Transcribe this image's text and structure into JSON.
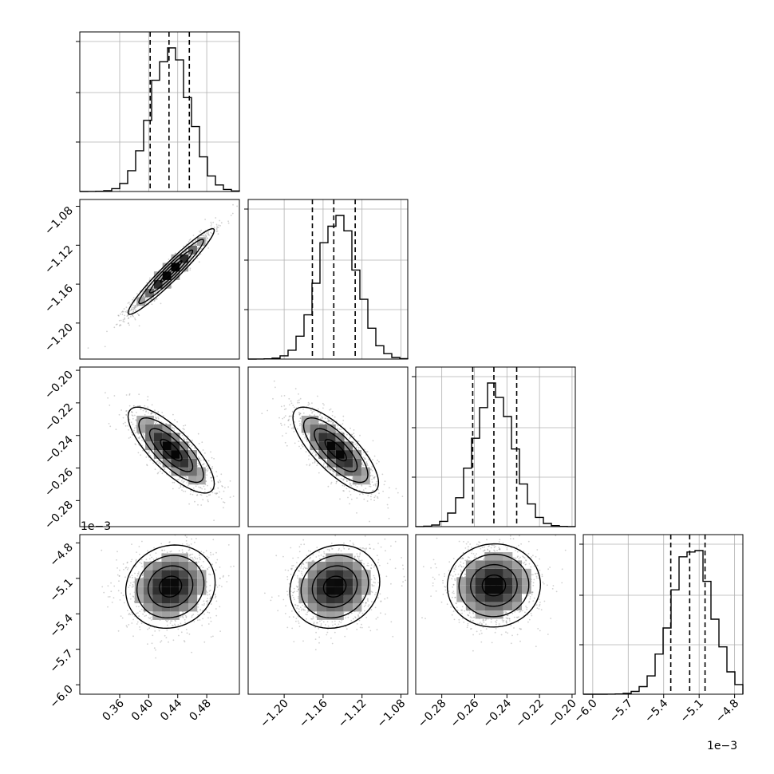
{
  "chart_data": {
    "type": "corner",
    "parameters": 4,
    "style": {
      "histogram_color": "#000000",
      "quantile_line_color": "#000000",
      "scatter_color": "#000000",
      "grid": true
    },
    "histograms": [
      {
        "param_index": 0,
        "range": [
          0.305,
          0.525
        ],
        "peak": 0.43,
        "width": 0.027,
        "quantiles": [
          0.402,
          0.428,
          0.456
        ],
        "grid_x": [
          0.36,
          0.4,
          0.44,
          0.48
        ]
      },
      {
        "param_index": 1,
        "range": [
          -1.237,
          -1.073
        ],
        "peak": -1.145,
        "width": 0.02,
        "quantiles": [
          -1.171,
          -1.149,
          -1.127
        ],
        "grid_x": [
          -1.2,
          -1.16,
          -1.12,
          -1.08
        ]
      },
      {
        "param_index": 2,
        "range": [
          -0.296,
          -0.198
        ],
        "peak": -0.248,
        "width": 0.012,
        "quantiles": [
          -0.261,
          -0.248,
          -0.234
        ],
        "grid_x": [
          -0.28,
          -0.26,
          -0.24,
          -0.22,
          -0.2
        ]
      },
      {
        "param_index": 3,
        "range": [
          -6.08,
          -4.73
        ],
        "peak": -5.16,
        "width": 0.17,
        "quantiles": [
          -5.34,
          -5.18,
          -5.05
        ],
        "grid_x": [
          -6.0,
          -5.7,
          -5.4,
          -5.1,
          -4.8
        ]
      }
    ],
    "axes": {
      "x_ranges": [
        [
          0.305,
          0.525
        ],
        [
          -1.237,
          -1.073
        ],
        [
          -0.296,
          -0.198
        ],
        [
          -6.08,
          -4.73
        ]
      ],
      "y_ranges": [
        null,
        [
          -1.237,
          -1.073
        ],
        [
          -0.296,
          -0.198
        ],
        [
          -6.08,
          -4.73
        ]
      ],
      "x_tick_labels": [
        [
          "0.36",
          "0.40",
          "0.44",
          "0.48"
        ],
        [
          "−1.20",
          "−1.16",
          "−1.12",
          "−1.08"
        ],
        [
          "−0.28",
          "−0.26",
          "−0.24",
          "−0.22",
          "−0.20"
        ],
        [
          "−6.0",
          "−5.7",
          "−5.4",
          "−5.1",
          "−4.8"
        ]
      ],
      "x_tick_values": [
        [
          0.36,
          0.4,
          0.44,
          0.48
        ],
        [
          -1.2,
          -1.16,
          -1.12,
          -1.08
        ],
        [
          -0.28,
          -0.26,
          -0.24,
          -0.22,
          -0.2
        ],
        [
          -6.0,
          -5.7,
          -5.4,
          -5.1,
          -4.8
        ]
      ],
      "y_tick_labels": [
        null,
        [
          "−1.08",
          "−1.12",
          "−1.16",
          "−1.20"
        ],
        [
          "−0.20",
          "−0.22",
          "−0.24",
          "−0.26",
          "−0.28"
        ],
        [
          "−4.8",
          "−5.1",
          "−5.4",
          "−5.7",
          "−6.0"
        ]
      ],
      "y_tick_values": [
        null,
        [
          -1.08,
          -1.12,
          -1.16,
          -1.2
        ],
        [
          -0.2,
          -0.22,
          -0.24,
          -0.26,
          -0.28
        ],
        [
          -4.8,
          -5.1,
          -5.4,
          -5.7,
          -6.0
        ]
      ],
      "y_offset_label": "1e−3",
      "x_offset_label": "1e−3"
    },
    "pair_plots": [
      {
        "row": 1,
        "col": 0,
        "center": [
          0.431,
          -1.147
        ],
        "sigma_x": 0.027,
        "sigma_y": 0.02,
        "rho": 0.96
      },
      {
        "row": 2,
        "col": 0,
        "center": [
          0.431,
          -0.249
        ],
        "sigma_x": 0.027,
        "sigma_y": 0.012,
        "rho": -0.78
      },
      {
        "row": 2,
        "col": 1,
        "center": [
          -1.147,
          -0.249
        ],
        "sigma_x": 0.02,
        "sigma_y": 0.012,
        "rho": -0.76
      },
      {
        "row": 3,
        "col": 0,
        "center": [
          0.43,
          -5.17
        ],
        "sigma_x": 0.028,
        "sigma_y": 0.16,
        "rho": 0.1
      },
      {
        "row": 3,
        "col": 1,
        "center": [
          -1.148,
          -5.17
        ],
        "sigma_x": 0.021,
        "sigma_y": 0.16,
        "rho": 0.12
      },
      {
        "row": 3,
        "col": 2,
        "center": [
          -0.248,
          -5.16
        ],
        "sigma_x": 0.013,
        "sigma_y": 0.16,
        "rho": 0.02
      }
    ]
  }
}
